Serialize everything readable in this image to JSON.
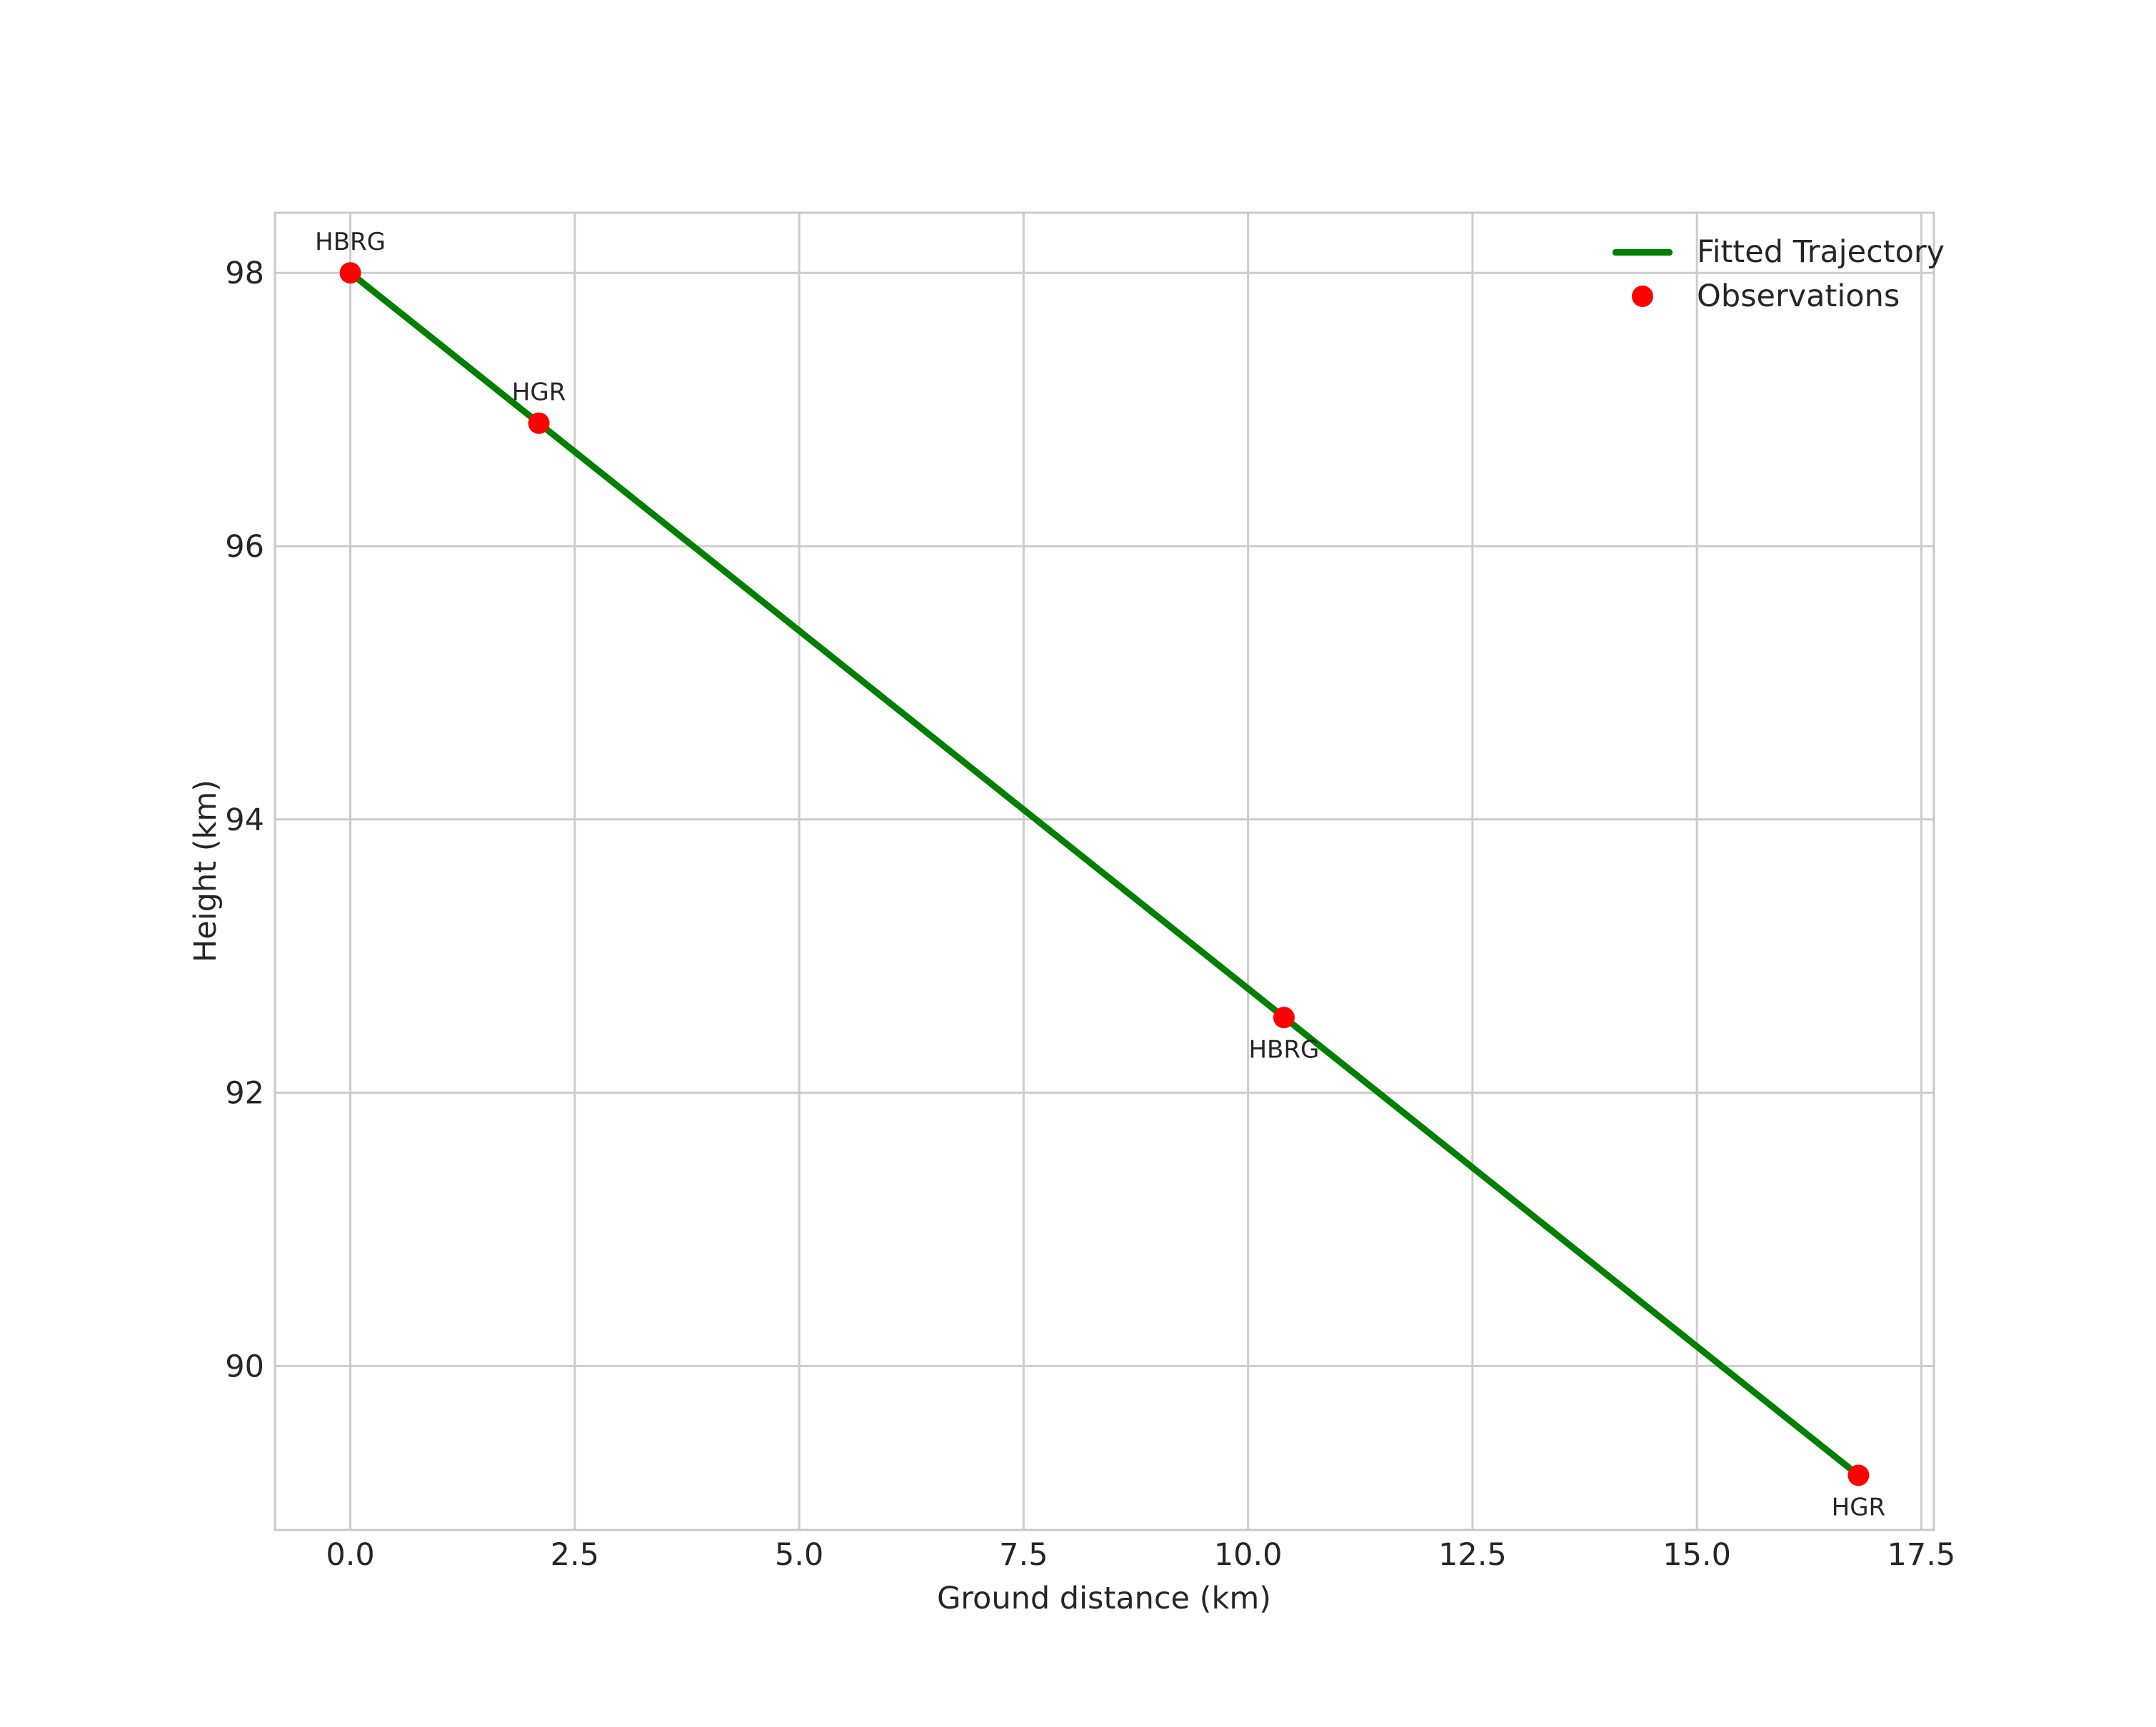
{
  "figure": {
    "background": "#ffffff",
    "text_color": "#262626",
    "grid_color": "#cccccc",
    "spine_color": "#c9c9c9"
  },
  "chart_data": {
    "type": "line",
    "title": "",
    "xlabel": "Ground distance (km)",
    "ylabel": "Height (km)",
    "xlim": [
      -0.84,
      17.64
    ],
    "ylim": [
      88.8,
      98.44
    ],
    "grid": true,
    "xticks": {
      "values": [
        0.0,
        2.5,
        5.0,
        7.5,
        10.0,
        12.5,
        15.0,
        17.5
      ],
      "labels": [
        "0.0",
        "2.5",
        "5.0",
        "7.5",
        "10.0",
        "12.5",
        "15.0",
        "17.5"
      ]
    },
    "yticks": {
      "values": [
        90,
        92,
        94,
        96,
        98
      ],
      "labels": [
        "90",
        "92",
        "94",
        "96",
        "98"
      ]
    },
    "legend": {
      "position": "upper right",
      "frame": false,
      "entries": [
        {
          "label": "Fitted Trajectory",
          "marker": "line",
          "color": "#008000"
        },
        {
          "label": "Observations",
          "marker": "dot",
          "color": "#ff0000"
        }
      ]
    },
    "series": [
      {
        "name": "Fitted Trajectory",
        "type": "line",
        "color": "#008000",
        "x": [
          0.0,
          16.8
        ],
        "y": [
          98.0,
          89.2
        ]
      },
      {
        "name": "Observations",
        "type": "scatter",
        "color": "#ff0000",
        "points": [
          {
            "x": 0.0,
            "y": 98.0,
            "label": "HBRG",
            "label_position": "above"
          },
          {
            "x": 2.1,
            "y": 96.9,
            "label": "HGR",
            "label_position": "above"
          },
          {
            "x": 10.4,
            "y": 92.55,
            "label": "HBRG",
            "label_position": "below"
          },
          {
            "x": 16.8,
            "y": 89.2,
            "label": "HGR",
            "label_position": "below"
          }
        ]
      }
    ]
  }
}
